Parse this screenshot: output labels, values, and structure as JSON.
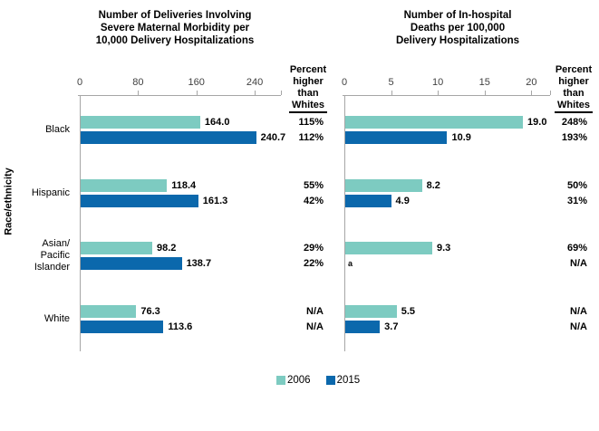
{
  "colors": {
    "series_2006": "#7DCBC1",
    "series_2015": "#0B68AC",
    "axis": "#A6A6A6",
    "tick_label": "#3F3F3F"
  },
  "y_axis_label": "Race/ethnicity",
  "percent_column_header": {
    "lines": "Percent\nhigher\nthan",
    "underlined": "Whites"
  },
  "legend": [
    {
      "label": "2006",
      "color_key": "series_2006"
    },
    {
      "label": "2015",
      "color_key": "series_2015"
    }
  ],
  "footnote_marker": "a",
  "chart_data": [
    {
      "type": "bar",
      "orientation": "horizontal",
      "title": "Number of Deliveries Involving\nSevere Maternal Morbidity per\n10,000 Delivery Hospitalizations",
      "xlabel": "",
      "ylabel": "Race/ethnicity",
      "categories": [
        "Black",
        "Hispanic",
        "Asian/\nPacific\nIslander",
        "White"
      ],
      "xticks": [
        0,
        80,
        160,
        240
      ],
      "xlim": [
        0,
        276
      ],
      "grid": false,
      "series": [
        {
          "name": "2006",
          "values": [
            164.0,
            118.4,
            98.2,
            76.3
          ],
          "value_labels": [
            "164.0",
            "118.4",
            "98.2",
            "76.3"
          ],
          "percent_higher_than_whites": [
            "115%",
            "55%",
            "29%",
            "N/A"
          ]
        },
        {
          "name": "2015",
          "values": [
            240.7,
            161.3,
            138.7,
            113.6
          ],
          "value_labels": [
            "240.7",
            "161.3",
            "138.7",
            "113.6"
          ],
          "percent_higher_than_whites": [
            "112%",
            "42%",
            "22%",
            "N/A"
          ]
        }
      ]
    },
    {
      "type": "bar",
      "orientation": "horizontal",
      "title": "Number of In-hospital\nDeaths per 100,000\nDelivery Hospitalizations",
      "xlabel": "",
      "ylabel": "",
      "categories": [
        "Black",
        "Hispanic",
        "Asian/\nPacific\nIslander",
        "White"
      ],
      "xticks": [
        0,
        5,
        10,
        15,
        20
      ],
      "xlim": [
        0,
        22
      ],
      "grid": false,
      "series": [
        {
          "name": "2006",
          "values": [
            19.0,
            8.2,
            9.3,
            5.5
          ],
          "value_labels": [
            "19.0",
            "8.2",
            "9.3",
            "5.5"
          ],
          "percent_higher_than_whites": [
            "248%",
            "50%",
            "69%",
            "N/A"
          ]
        },
        {
          "name": "2015",
          "values": [
            10.9,
            4.9,
            null,
            3.7
          ],
          "value_labels": [
            "10.9",
            "4.9",
            "a",
            "3.7"
          ],
          "percent_higher_than_whites": [
            "193%",
            "31%",
            "N/A",
            "N/A"
          ]
        }
      ]
    }
  ]
}
